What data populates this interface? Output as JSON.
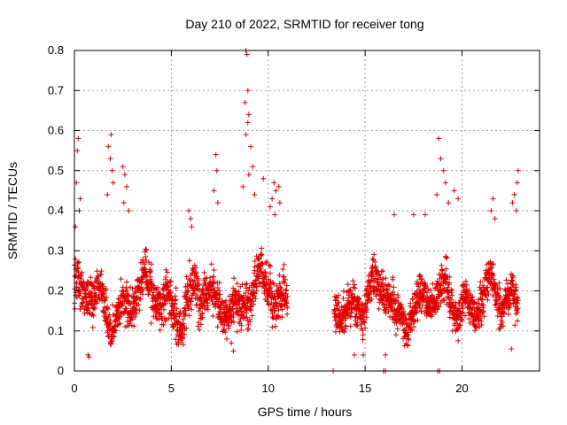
{
  "chart_data": {
    "type": "scatter",
    "title": "Day 210 of 2022, SRMTID for receiver tong",
    "xlabel": "GPS time / hours",
    "ylabel": "SRMTID / TECUs",
    "xlim": [
      0,
      24
    ],
    "ylim": [
      0,
      0.8
    ],
    "x_ticks": [
      0,
      5,
      10,
      15,
      20
    ],
    "x_tick_labels": [
      "0",
      "5",
      "10",
      "15",
      "20"
    ],
    "y_ticks": [
      0,
      0.1,
      0.2,
      0.3,
      0.4,
      0.5,
      0.6,
      0.7,
      0.8
    ],
    "y_tick_labels": [
      "0",
      "0.1",
      "0.2",
      "0.3",
      "0.4",
      "0.5",
      "0.6",
      "0.7",
      "0.8"
    ],
    "grid": true,
    "marker": "+",
    "color": "#e00000",
    "series": [
      {
        "name": "SRMTID",
        "segments": [
          {
            "x_start": 0.0,
            "x_end": 11.0,
            "base": 0.18,
            "spread": 0.1
          },
          {
            "x_start": 13.4,
            "x_end": 22.9,
            "base": 0.17,
            "spread": 0.09
          }
        ],
        "bursts": [
          {
            "x": 0.2,
            "y": 0.58
          },
          {
            "x": 0.15,
            "y": 0.55
          },
          {
            "x": 0.1,
            "y": 0.47
          },
          {
            "x": 0.3,
            "y": 0.43
          },
          {
            "x": 0.25,
            "y": 0.4
          },
          {
            "x": 0.05,
            "y": 0.36
          },
          {
            "x": 1.75,
            "y": 0.56
          },
          {
            "x": 1.9,
            "y": 0.59
          },
          {
            "x": 1.85,
            "y": 0.53
          },
          {
            "x": 1.95,
            "y": 0.5
          },
          {
            "x": 2.0,
            "y": 0.47
          },
          {
            "x": 1.7,
            "y": 0.44
          },
          {
            "x": 2.5,
            "y": 0.51
          },
          {
            "x": 2.6,
            "y": 0.49
          },
          {
            "x": 2.7,
            "y": 0.46
          },
          {
            "x": 2.55,
            "y": 0.42
          },
          {
            "x": 2.8,
            "y": 0.4
          },
          {
            "x": 5.9,
            "y": 0.4
          },
          {
            "x": 6.0,
            "y": 0.38
          },
          {
            "x": 6.05,
            "y": 0.36
          },
          {
            "x": 7.3,
            "y": 0.54
          },
          {
            "x": 7.35,
            "y": 0.5
          },
          {
            "x": 7.2,
            "y": 0.45
          },
          {
            "x": 7.4,
            "y": 0.42
          },
          {
            "x": 8.85,
            "y": 0.8
          },
          {
            "x": 8.9,
            "y": 0.79
          },
          {
            "x": 8.95,
            "y": 0.7
          },
          {
            "x": 8.8,
            "y": 0.67
          },
          {
            "x": 9.0,
            "y": 0.64
          },
          {
            "x": 8.95,
            "y": 0.62
          },
          {
            "x": 8.85,
            "y": 0.59
          },
          {
            "x": 9.1,
            "y": 0.56
          },
          {
            "x": 9.2,
            "y": 0.51
          },
          {
            "x": 9.0,
            "y": 0.49
          },
          {
            "x": 8.7,
            "y": 0.46
          },
          {
            "x": 9.3,
            "y": 0.44
          },
          {
            "x": 9.75,
            "y": 0.48
          },
          {
            "x": 10.3,
            "y": 0.47
          },
          {
            "x": 10.4,
            "y": 0.45
          },
          {
            "x": 10.2,
            "y": 0.43
          },
          {
            "x": 10.55,
            "y": 0.46
          },
          {
            "x": 10.6,
            "y": 0.42
          },
          {
            "x": 10.1,
            "y": 0.41
          },
          {
            "x": 10.35,
            "y": 0.39
          },
          {
            "x": 16.5,
            "y": 0.39
          },
          {
            "x": 17.5,
            "y": 0.39
          },
          {
            "x": 18.1,
            "y": 0.39
          },
          {
            "x": 18.8,
            "y": 0.58
          },
          {
            "x": 18.9,
            "y": 0.53
          },
          {
            "x": 19.05,
            "y": 0.5
          },
          {
            "x": 19.15,
            "y": 0.47
          },
          {
            "x": 18.7,
            "y": 0.44
          },
          {
            "x": 19.3,
            "y": 0.42
          },
          {
            "x": 19.6,
            "y": 0.45
          },
          {
            "x": 19.8,
            "y": 0.43
          },
          {
            "x": 21.6,
            "y": 0.43
          },
          {
            "x": 21.5,
            "y": 0.4
          },
          {
            "x": 21.7,
            "y": 0.38
          },
          {
            "x": 22.9,
            "y": 0.5
          },
          {
            "x": 22.85,
            "y": 0.47
          },
          {
            "x": 22.7,
            "y": 0.44
          },
          {
            "x": 22.6,
            "y": 0.42
          },
          {
            "x": 22.8,
            "y": 0.4
          },
          {
            "x": 0.7,
            "y": 0.04
          },
          {
            "x": 0.75,
            "y": 0.035
          },
          {
            "x": 14.45,
            "y": 0.04
          },
          {
            "x": 14.9,
            "y": 0.04
          },
          {
            "x": 16.05,
            "y": 0.04
          },
          {
            "x": 22.55,
            "y": 0.055
          },
          {
            "x": 8.2,
            "y": 0.05
          },
          {
            "x": 8.1,
            "y": 0.07
          }
        ],
        "zero_points": [
          {
            "x": 13.35,
            "y": 0
          },
          {
            "x": 15.95,
            "y": 0
          },
          {
            "x": 16.05,
            "y": 0
          },
          {
            "x": 18.75,
            "y": 0
          },
          {
            "x": 18.85,
            "y": 0
          }
        ]
      }
    ]
  }
}
